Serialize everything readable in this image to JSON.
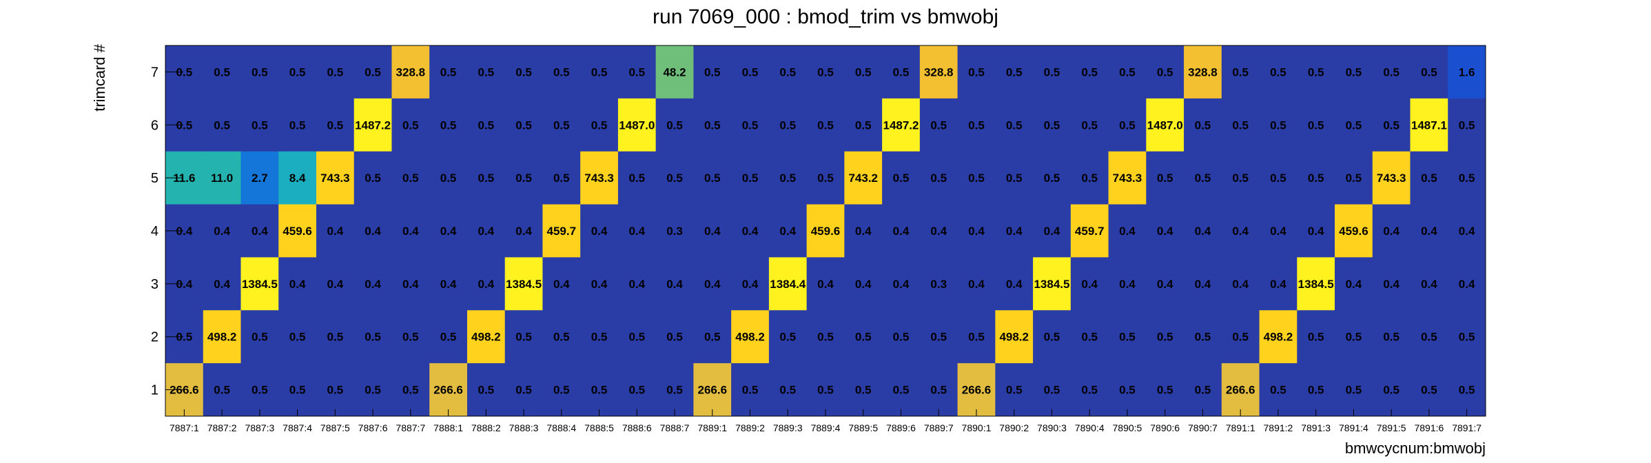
{
  "chart_data": {
    "type": "heatmap",
    "title": "run 7069_000 : bmod_trim vs bmwobj",
    "xlabel": "bmwcycnum:bmwobj",
    "ylabel": "trimcard #",
    "x_categories": [
      "7887:1",
      "7887:2",
      "7887:3",
      "7887:4",
      "7887:5",
      "7887:6",
      "7887:7",
      "7888:1",
      "7888:2",
      "7888:3",
      "7888:4",
      "7888:5",
      "7888:6",
      "7888:7",
      "7889:1",
      "7889:2",
      "7889:3",
      "7889:4",
      "7889:5",
      "7889:6",
      "7889:7",
      "7890:1",
      "7890:2",
      "7890:3",
      "7890:4",
      "7890:5",
      "7890:6",
      "7890:7",
      "7891:1",
      "7891:2",
      "7891:3",
      "7891:4",
      "7891:5",
      "7891:6",
      "7891:7"
    ],
    "y_categories": [
      "1",
      "2",
      "3",
      "4",
      "5",
      "6",
      "7"
    ],
    "rows": [
      {
        "y": "7",
        "values": [
          0.5,
          0.5,
          0.5,
          0.5,
          0.5,
          0.5,
          328.8,
          0.5,
          0.5,
          0.5,
          0.5,
          0.5,
          0.5,
          48.2,
          0.5,
          0.5,
          0.5,
          0.5,
          0.5,
          0.5,
          328.8,
          0.5,
          0.5,
          0.5,
          0.5,
          0.5,
          0.5,
          328.8,
          0.5,
          0.5,
          0.5,
          0.5,
          0.5,
          0.5,
          1.6
        ]
      },
      {
        "y": "6",
        "values": [
          0.5,
          0.5,
          0.5,
          0.5,
          0.5,
          1487.2,
          0.5,
          0.5,
          0.5,
          0.5,
          0.5,
          0.5,
          1487.0,
          0.5,
          0.5,
          0.5,
          0.5,
          0.5,
          0.5,
          1487.2,
          0.5,
          0.5,
          0.5,
          0.5,
          0.5,
          0.5,
          1487.0,
          0.5,
          0.5,
          0.5,
          0.5,
          0.5,
          0.5,
          1487.1,
          0.5
        ]
      },
      {
        "y": "5",
        "values": [
          11.6,
          11.0,
          2.7,
          8.4,
          743.3,
          0.5,
          0.5,
          0.5,
          0.5,
          0.5,
          0.5,
          743.3,
          0.5,
          0.5,
          0.5,
          0.5,
          0.5,
          0.5,
          743.2,
          0.5,
          0.5,
          0.5,
          0.5,
          0.5,
          0.5,
          743.3,
          0.5,
          0.5,
          0.5,
          0.5,
          0.5,
          0.5,
          743.3,
          0.5,
          0.5
        ]
      },
      {
        "y": "4",
        "values": [
          0.4,
          0.4,
          0.4,
          459.6,
          0.4,
          0.4,
          0.4,
          0.4,
          0.4,
          0.4,
          459.7,
          0.4,
          0.4,
          0.3,
          0.4,
          0.4,
          0.4,
          459.6,
          0.4,
          0.4,
          0.4,
          0.4,
          0.4,
          0.4,
          459.7,
          0.4,
          0.4,
          0.4,
          0.4,
          0.4,
          0.4,
          459.6,
          0.4,
          0.4,
          0.4
        ]
      },
      {
        "y": "3",
        "values": [
          0.4,
          0.4,
          1384.5,
          0.4,
          0.4,
          0.4,
          0.4,
          0.4,
          0.4,
          1384.5,
          0.4,
          0.4,
          0.4,
          0.4,
          0.4,
          0.4,
          1384.4,
          0.4,
          0.4,
          0.4,
          0.3,
          0.4,
          0.4,
          1384.5,
          0.4,
          0.4,
          0.4,
          0.4,
          0.4,
          0.4,
          1384.5,
          0.4,
          0.4,
          0.4,
          0.4
        ]
      },
      {
        "y": "2",
        "values": [
          0.5,
          498.2,
          0.5,
          0.5,
          0.5,
          0.5,
          0.5,
          0.5,
          498.2,
          0.5,
          0.5,
          0.5,
          0.5,
          0.5,
          0.5,
          498.2,
          0.5,
          0.5,
          0.5,
          0.5,
          0.5,
          0.5,
          498.2,
          0.5,
          0.5,
          0.5,
          0.5,
          0.5,
          0.5,
          498.2,
          0.5,
          0.5,
          0.5,
          0.5,
          0.5
        ]
      },
      {
        "y": "1",
        "values": [
          266.6,
          0.5,
          0.5,
          0.5,
          0.5,
          0.5,
          0.5,
          266.6,
          0.5,
          0.5,
          0.5,
          0.5,
          0.5,
          0.5,
          266.6,
          0.5,
          0.5,
          0.5,
          0.5,
          0.5,
          0.5,
          266.6,
          0.5,
          0.5,
          0.5,
          0.5,
          0.5,
          0.5,
          266.6,
          0.5,
          0.5,
          0.5,
          0.5,
          0.5,
          0.5
        ]
      }
    ],
    "cell_colors": {
      "low": "#2a3ca6",
      "tier_2": "#1a4fd0",
      "tier_3": "#1476d8",
      "tier_8": "#1aaec0",
      "tier_12": "#25b3b0",
      "tier_48": "#6fbf7a",
      "tier_267": "#e2bd40",
      "tier_329": "#f2c030",
      "tier_460": "#ffd21e",
      "high": "#fff21e"
    }
  }
}
